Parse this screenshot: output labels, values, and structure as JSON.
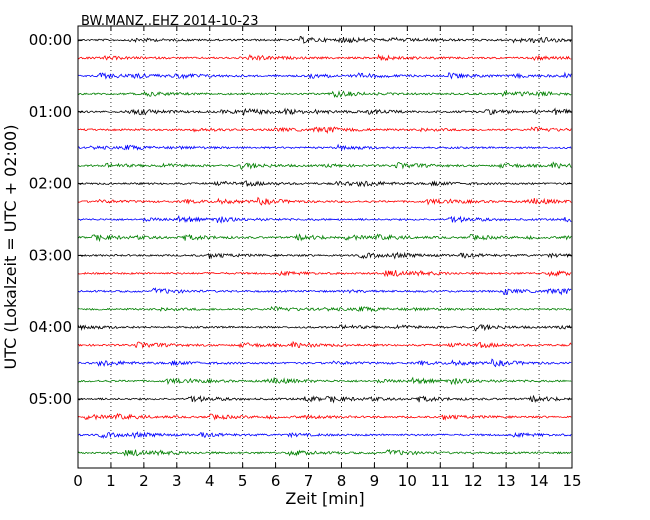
{
  "chart_data": {
    "type": "line",
    "title": "BW.MANZ..EHZ 2014-10-23",
    "xlabel": "Zeit  [min]",
    "ylabel": "UTC (Lokalzeit = UTC + 02:00)",
    "xlim": [
      0,
      15
    ],
    "x_ticks": [
      0,
      1,
      2,
      3,
      4,
      5,
      6,
      7,
      8,
      9,
      10,
      11,
      12,
      13,
      14,
      15
    ],
    "x_tick_labels": [
      "0",
      "1",
      "2",
      "3",
      "4",
      "5",
      "6",
      "7",
      "8",
      "9",
      "10",
      "11",
      "12",
      "13",
      "14",
      "15"
    ],
    "y_tick_labels": [
      "00:00",
      "01:00",
      "02:00",
      "03:00",
      "04:00",
      "05:00"
    ],
    "y_tick_traces": [
      0,
      4,
      8,
      12,
      16,
      20
    ],
    "trace_count": 24,
    "trace_interval_min": 15,
    "trace_colors": [
      "#000000",
      "#ff0000",
      "#0000ff",
      "#008000"
    ],
    "grid": "vertical dotted at each minute",
    "series": [
      {
        "start": "00:00"
      },
      {
        "start": "00:15"
      },
      {
        "start": "00:30"
      },
      {
        "start": "00:45"
      },
      {
        "start": "01:00"
      },
      {
        "start": "01:15"
      },
      {
        "start": "01:30"
      },
      {
        "start": "01:45"
      },
      {
        "start": "02:00"
      },
      {
        "start": "02:15"
      },
      {
        "start": "02:30"
      },
      {
        "start": "02:45"
      },
      {
        "start": "03:00"
      },
      {
        "start": "03:15"
      },
      {
        "start": "03:30"
      },
      {
        "start": "03:45"
      },
      {
        "start": "04:00"
      },
      {
        "start": "04:15"
      },
      {
        "start": "04:30"
      },
      {
        "start": "04:45"
      },
      {
        "start": "05:00"
      },
      {
        "start": "05:15"
      },
      {
        "start": "05:30"
      },
      {
        "start": "05:45"
      }
    ]
  }
}
